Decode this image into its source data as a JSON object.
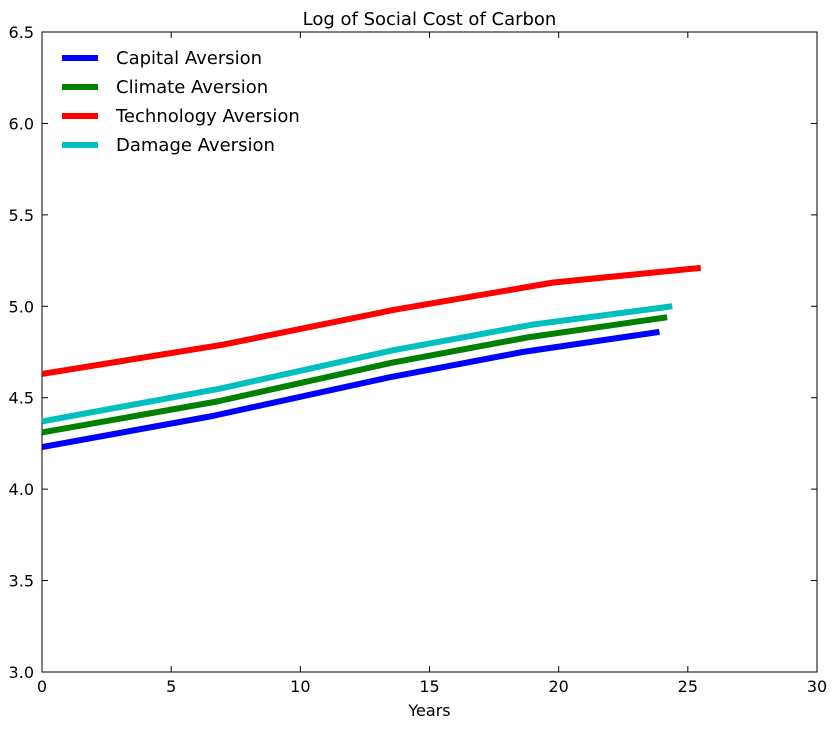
{
  "chart_data": {
    "type": "line",
    "title": "Log of Social Cost of Carbon",
    "xlabel": "Years",
    "ylabel": "",
    "xlim": [
      0,
      30
    ],
    "ylim": [
      3.0,
      6.5
    ],
    "grid": false,
    "legend_position": "top-left",
    "x_ticks": [
      "0",
      "5",
      "10",
      "15",
      "20",
      "25",
      "30"
    ],
    "y_ticks": [
      "3.0",
      "3.5",
      "4.0",
      "4.5",
      "5.0",
      "5.5",
      "6.0",
      "6.5"
    ],
    "series": [
      {
        "name": "Capital Aversion",
        "color": "#0000ff",
        "x": [
          0,
          6.6,
          13.4,
          18.6,
          23.9
        ],
        "y": [
          4.23,
          4.4,
          4.61,
          4.75,
          4.86
        ]
      },
      {
        "name": "Climate Aversion",
        "color": "#008000",
        "x": [
          0,
          6.8,
          13.5,
          18.8,
          24.2
        ],
        "y": [
          4.31,
          4.48,
          4.69,
          4.83,
          4.94
        ]
      },
      {
        "name": "Technology Aversion",
        "color": "#ff0000",
        "x": [
          0,
          7.0,
          13.6,
          19.8,
          25.5
        ],
        "y": [
          4.63,
          4.79,
          4.98,
          5.13,
          5.21
        ]
      },
      {
        "name": "Damage Aversion",
        "color": "#00bfbf",
        "x": [
          0,
          6.9,
          13.6,
          19.0,
          24.4
        ],
        "y": [
          4.37,
          4.55,
          4.76,
          4.9,
          5.0
        ]
      }
    ]
  }
}
